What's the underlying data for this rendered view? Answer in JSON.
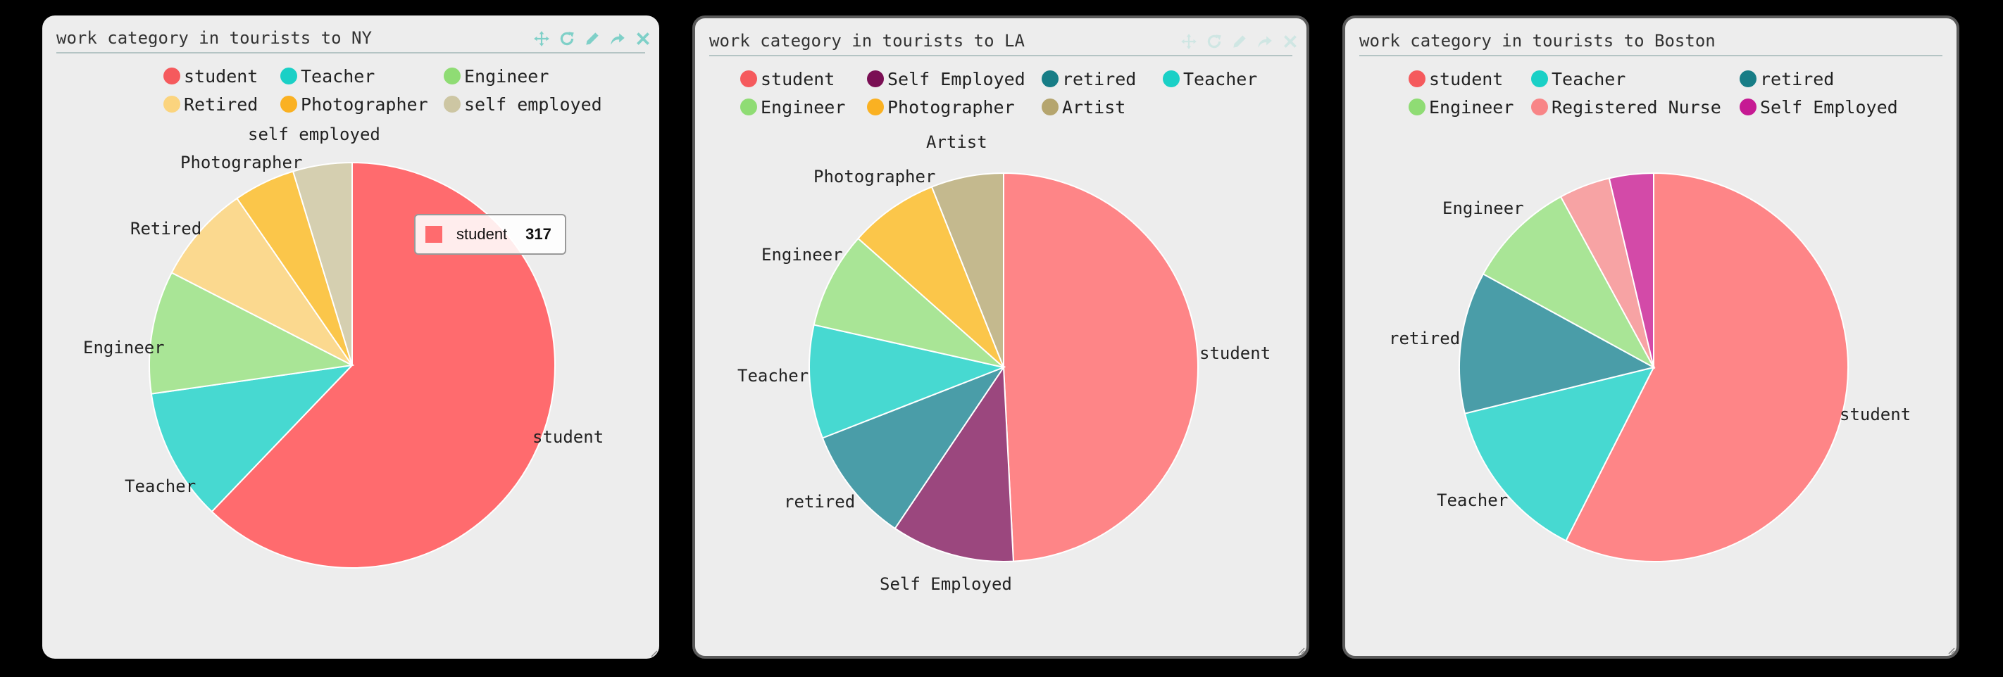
{
  "chart_data": [
    {
      "type": "pie",
      "title": "work category in tourists to NY",
      "slices": [
        {
          "label": "student",
          "value": 317,
          "color": "#ff6b6e"
        },
        {
          "label": "Teacher",
          "value": 54,
          "color": "#47d9d1"
        },
        {
          "label": "Engineer",
          "value": 50,
          "color": "#a9e596"
        },
        {
          "label": "Retired",
          "value": 40,
          "color": "#fbd98f"
        },
        {
          "label": "Photographer",
          "value": 25,
          "color": "#fbc64a"
        },
        {
          "label": "self employed",
          "value": 24,
          "color": "#d5cfb0"
        }
      ],
      "legend": {
        "position": "top"
      },
      "tooltip": {
        "label": "student",
        "value": "317"
      }
    },
    {
      "type": "pie",
      "title": "work category in tourists to LA",
      "slices": [
        {
          "label": "student",
          "value": 245,
          "color": "#fe8587"
        },
        {
          "label": "Self Employed",
          "value": 51,
          "color": "#9b477e"
        },
        {
          "label": "retired",
          "value": 48,
          "color": "#4a9da8"
        },
        {
          "label": "Teacher",
          "value": 47,
          "color": "#47d9d1"
        },
        {
          "label": "Engineer",
          "value": 40,
          "color": "#a9e596"
        },
        {
          "label": "Photographer",
          "value": 37,
          "color": "#fbc64a"
        },
        {
          "label": "Artist",
          "value": 30,
          "color": "#c4b98e"
        }
      ],
      "legend": {
        "position": "top"
      }
    },
    {
      "type": "pie",
      "title": "work category in tourists to Boston",
      "slices": [
        {
          "label": "student",
          "value": 297,
          "color": "#fe8587"
        },
        {
          "label": "Teacher",
          "value": 71,
          "color": "#47d9d1"
        },
        {
          "label": "retired",
          "value": 61,
          "color": "#4a9da8"
        },
        {
          "label": "Engineer",
          "value": 47,
          "color": "#a9e596"
        },
        {
          "label": "Registered Nurse",
          "value": 22,
          "color": "#f7a3a4"
        },
        {
          "label": "Self Employed",
          "value": 19,
          "color": "#d34aa8"
        }
      ],
      "legend": {
        "position": "top"
      }
    }
  ],
  "legends": [
    [
      {
        "label": "student",
        "color": "#f55a5d"
      },
      {
        "label": "Teacher",
        "color": "#1ad0c6"
      },
      {
        "label": "Engineer",
        "color": "#8fdc74"
      },
      {
        "label": "Retired",
        "color": "#fbd47e"
      },
      {
        "label": "Photographer",
        "color": "#fab122"
      },
      {
        "label": "self employed",
        "color": "#cdc6a3"
      }
    ],
    [
      {
        "label": "student",
        "color": "#f55a5d"
      },
      {
        "label": "Self Employed",
        "color": "#7a0f54"
      },
      {
        "label": "retired",
        "color": "#177d86"
      },
      {
        "label": "Teacher",
        "color": "#1ad0c6"
      },
      {
        "label": "Engineer",
        "color": "#8fdc74"
      },
      {
        "label": "Photographer",
        "color": "#fab122"
      },
      {
        "label": "Artist",
        "color": "#b5a56e"
      }
    ],
    [
      {
        "label": "student",
        "color": "#f55a5d"
      },
      {
        "label": "Teacher",
        "color": "#1ad0c6"
      },
      {
        "label": "retired",
        "color": "#177d86"
      },
      {
        "label": "Engineer",
        "color": "#8fdc74"
      },
      {
        "label": "Registered Nurse",
        "color": "#f88587"
      },
      {
        "label": "Self Employed",
        "color": "#c61a93"
      }
    ]
  ],
  "toolbar": {
    "icons": [
      "move-icon",
      "refresh-icon",
      "edit-icon",
      "share-icon",
      "close-icon"
    ],
    "active_color": "#7fd0c8",
    "faded_color": "#cfe6e3"
  }
}
